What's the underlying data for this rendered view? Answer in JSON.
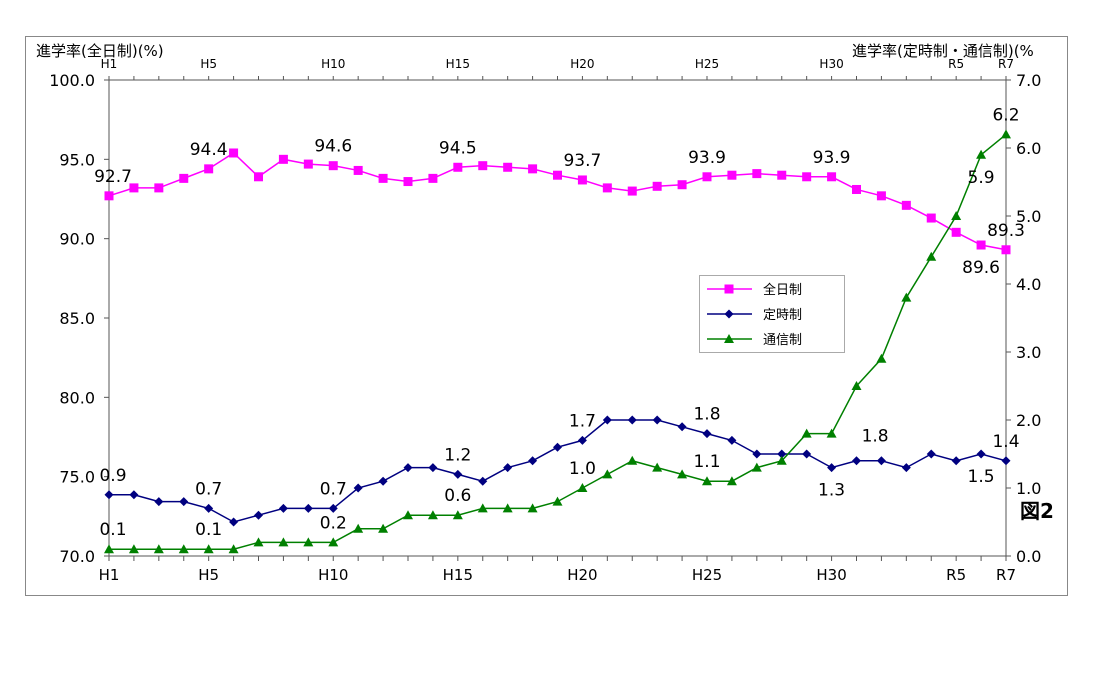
{
  "chart_data": {
    "type": "line",
    "figure_label": "図2",
    "left_axis": {
      "label": "進学率(全日制)(%)",
      "range": [
        70,
        100
      ],
      "ticks": [
        "70.0",
        "75.0",
        "80.0",
        "85.0",
        "90.0",
        "95.0",
        "100.0"
      ],
      "tick_values": [
        70,
        75,
        80,
        85,
        90,
        95,
        100
      ]
    },
    "right_axis": {
      "label": "進学率(定時制・通信制)(%",
      "range": [
        0,
        7
      ],
      "ticks": [
        "0.0",
        "1.0",
        "2.0",
        "3.0",
        "4.0",
        "5.0",
        "6.0",
        "7.0"
      ],
      "tick_values": [
        0,
        1,
        2,
        3,
        4,
        5,
        6,
        7
      ]
    },
    "x": [
      "H1",
      "H2",
      "H3",
      "H4",
      "H5",
      "H6",
      "H7",
      "H8",
      "H9",
      "H10",
      "H11",
      "H12",
      "H13",
      "H14",
      "H15",
      "H16",
      "H17",
      "H18",
      "H19",
      "H20",
      "H21",
      "H22",
      "H23",
      "H24",
      "H25",
      "H26",
      "H27",
      "H28",
      "H29",
      "H30",
      "R1",
      "R2",
      "R3",
      "R4",
      "R5",
      "R6",
      "R7"
    ],
    "bottom_tick_labels": [
      {
        "index": 0,
        "label": "H1"
      },
      {
        "index": 4,
        "label": "H5"
      },
      {
        "index": 9,
        "label": "H10"
      },
      {
        "index": 14,
        "label": "H15"
      },
      {
        "index": 19,
        "label": "H20"
      },
      {
        "index": 24,
        "label": "H25"
      },
      {
        "index": 29,
        "label": "H30"
      },
      {
        "index": 34,
        "label": "R5"
      },
      {
        "index": 36,
        "label": "R7"
      }
    ],
    "top_tick_labels": [
      {
        "index": 0,
        "label": "H1"
      },
      {
        "index": 4,
        "label": "H5"
      },
      {
        "index": 9,
        "label": "H10"
      },
      {
        "index": 14,
        "label": "H15"
      },
      {
        "index": 19,
        "label": "H20"
      },
      {
        "index": 24,
        "label": "H25"
      },
      {
        "index": 29,
        "label": "H30"
      },
      {
        "index": 34,
        "label": "R5"
      },
      {
        "index": 36,
        "label": "R7"
      }
    ],
    "legend_position": "center-right",
    "series": [
      {
        "name": "全日制",
        "axis": "left",
        "color": "#ff00ff",
        "marker": "square",
        "values": [
          92.7,
          93.2,
          93.2,
          93.8,
          94.4,
          95.4,
          93.9,
          95.0,
          94.7,
          94.6,
          94.3,
          93.8,
          93.6,
          93.8,
          94.5,
          94.6,
          94.5,
          94.4,
          94.0,
          93.7,
          93.2,
          93.0,
          93.3,
          93.4,
          93.9,
          94.0,
          94.1,
          94.0,
          93.9,
          93.9,
          93.1,
          92.7,
          92.1,
          91.3,
          90.4,
          89.6,
          89.3
        ],
        "labels": [
          {
            "index": 0,
            "text": "92.7",
            "pos": "above"
          },
          {
            "index": 4,
            "text": "94.4",
            "pos": "above"
          },
          {
            "index": 9,
            "text": "94.6",
            "pos": "above"
          },
          {
            "index": 14,
            "text": "94.5",
            "pos": "above"
          },
          {
            "index": 19,
            "text": "93.7",
            "pos": "above"
          },
          {
            "index": 24,
            "text": "93.9",
            "pos": "above"
          },
          {
            "index": 29,
            "text": "93.9",
            "pos": "above"
          },
          {
            "index": 35,
            "text": "89.6",
            "pos": "below"
          },
          {
            "index": 36,
            "text": "89.3",
            "pos": "above"
          }
        ]
      },
      {
        "name": "定時制",
        "axis": "right",
        "color": "#000080",
        "marker": "diamond",
        "values": [
          0.9,
          0.9,
          0.8,
          0.8,
          0.7,
          0.5,
          0.6,
          0.7,
          0.7,
          0.7,
          1.0,
          1.1,
          1.3,
          1.3,
          1.2,
          1.1,
          1.3,
          1.4,
          1.6,
          1.7,
          2.0,
          2.0,
          2.0,
          1.9,
          1.8,
          1.7,
          1.5,
          1.5,
          1.5,
          1.3,
          1.4,
          1.4,
          1.3,
          1.5,
          1.4,
          1.5,
          1.4
        ],
        "labels": [
          {
            "index": 0,
            "text": "0.9",
            "pos": "above"
          },
          {
            "index": 4,
            "text": "0.7",
            "pos": "above"
          },
          {
            "index": 9,
            "text": "0.7",
            "pos": "above"
          },
          {
            "index": 14,
            "text": "1.2",
            "pos": "above"
          },
          {
            "index": 19,
            "text": "1.7",
            "pos": "above"
          },
          {
            "index": 24,
            "text": "1.8",
            "pos": "above"
          },
          {
            "index": 29,
            "text": "1.3",
            "pos": "below"
          },
          {
            "index": 35,
            "text": "1.5",
            "pos": "below"
          },
          {
            "index": 36,
            "text": "1.4",
            "pos": "above"
          }
        ]
      },
      {
        "name": "通信制",
        "axis": "right",
        "color": "#008000",
        "marker": "triangle",
        "values": [
          0.1,
          0.1,
          0.1,
          0.1,
          0.1,
          0.1,
          0.2,
          0.2,
          0.2,
          0.2,
          0.4,
          0.4,
          0.6,
          0.6,
          0.6,
          0.7,
          0.7,
          0.7,
          0.8,
          1.0,
          1.2,
          1.4,
          1.3,
          1.2,
          1.1,
          1.1,
          1.3,
          1.4,
          1.8,
          1.8,
          2.5,
          2.9,
          3.8,
          4.4,
          5.0,
          5.9,
          6.2
        ],
        "labels": [
          {
            "index": 0,
            "text": "0.1",
            "pos": "above"
          },
          {
            "index": 4,
            "text": "0.1",
            "pos": "above"
          },
          {
            "index": 9,
            "text": "0.2",
            "pos": "above"
          },
          {
            "index": 14,
            "text": "0.6",
            "pos": "above"
          },
          {
            "index": 19,
            "text": "1.0",
            "pos": "above"
          },
          {
            "index": 24,
            "text": "1.1",
            "pos": "above"
          },
          {
            "index": 29,
            "text": "1.8",
            "pos": "right"
          },
          {
            "index": 35,
            "text": "5.9",
            "pos": "below"
          },
          {
            "index": 36,
            "text": "6.2",
            "pos": "above"
          }
        ]
      }
    ]
  }
}
